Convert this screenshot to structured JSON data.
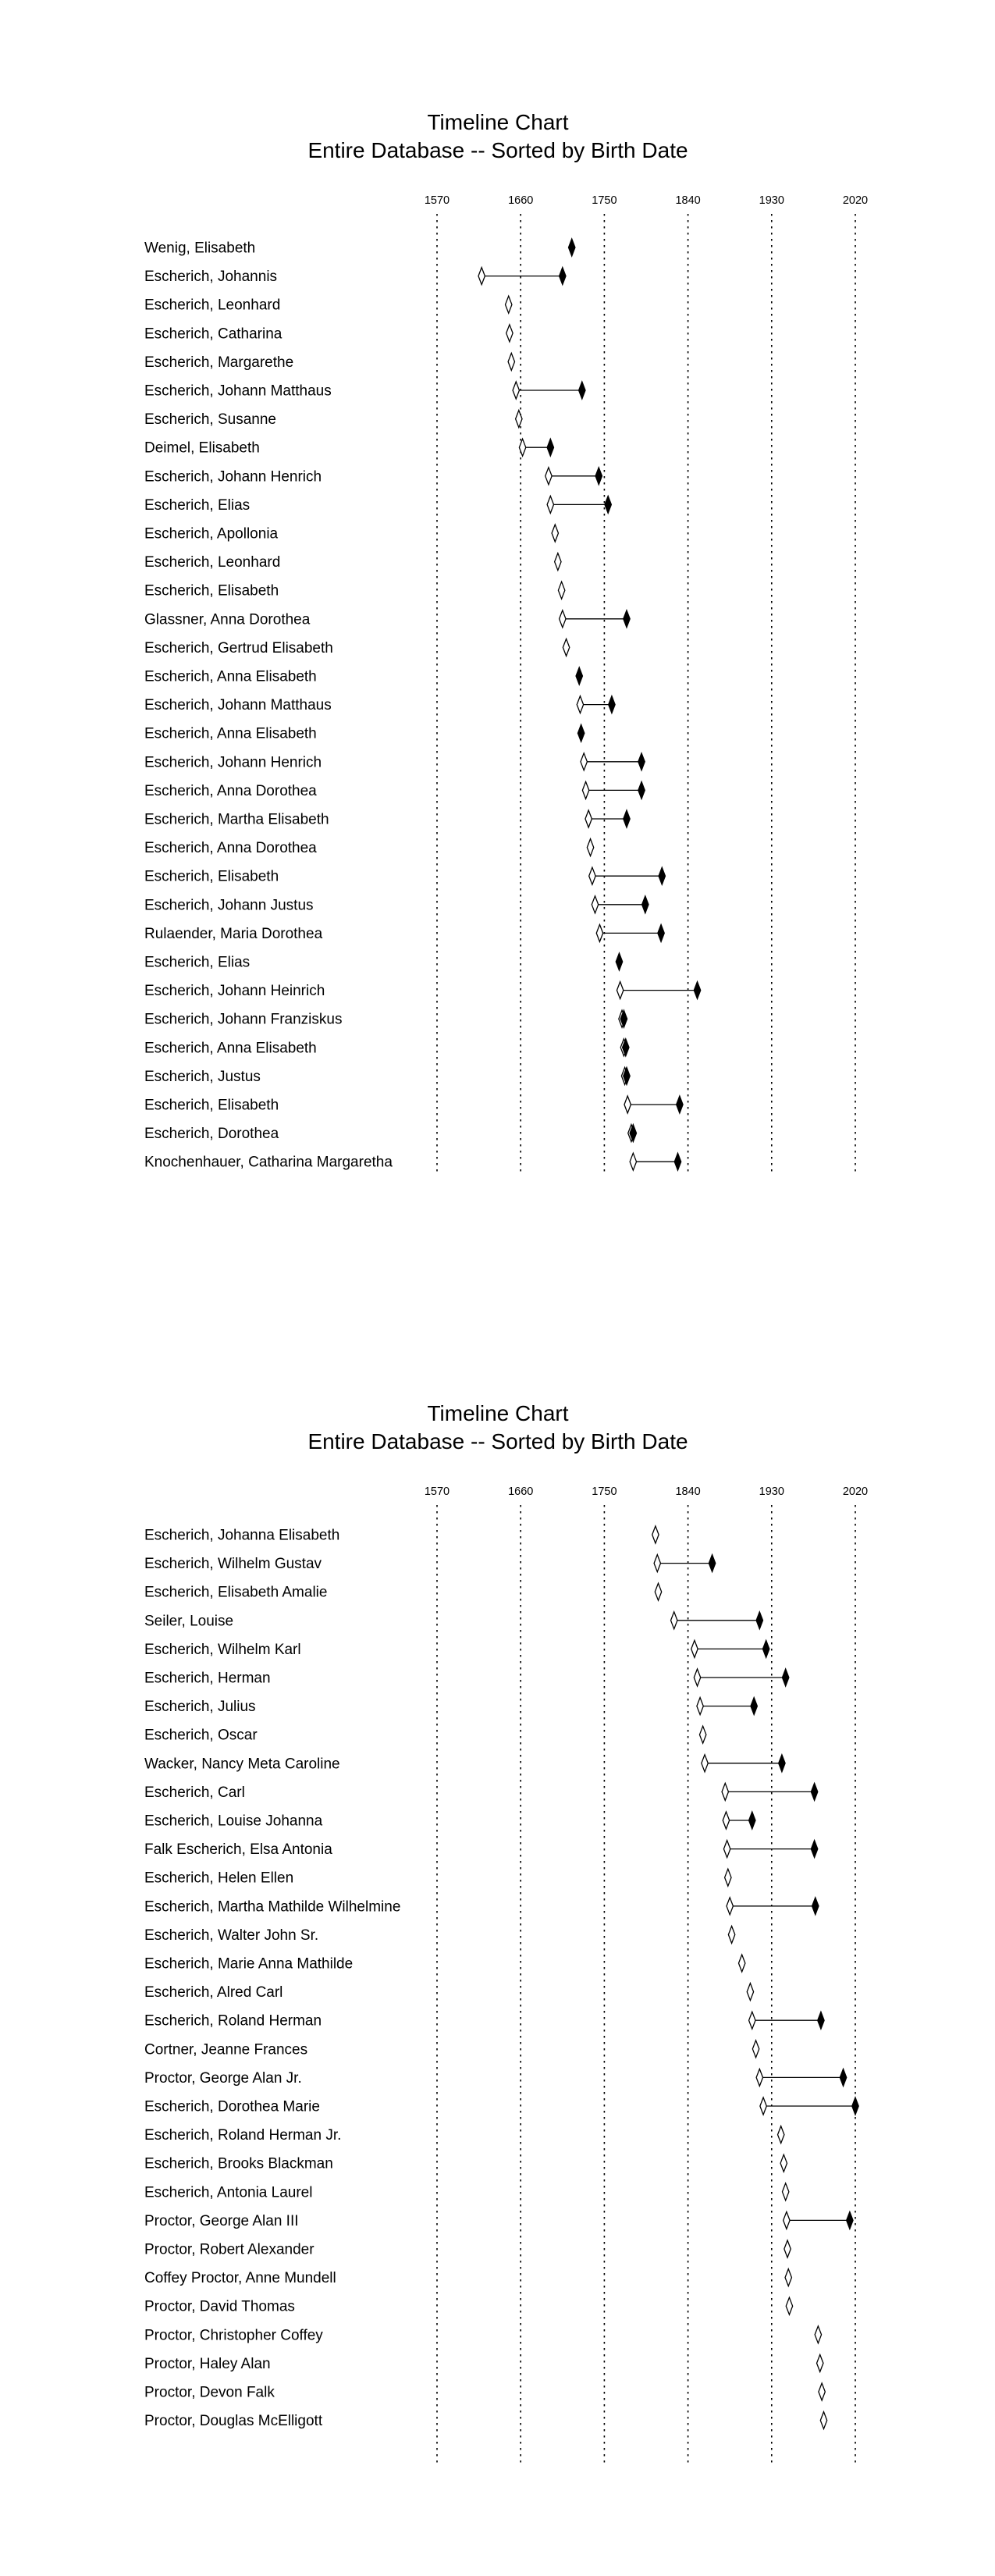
{
  "chart_data": [
    {
      "type": "timeline",
      "title": "Timeline Chart",
      "subtitle": "Entire Database -- Sorted by Birth Date",
      "ticks": [
        1570,
        1660,
        1750,
        1840,
        1930,
        2020
      ],
      "xlim": [
        1570,
        2020
      ],
      "legend": "none",
      "people": [
        {
          "name": "Wenig, Elisabeth",
          "death": 1715
        },
        {
          "name": "Escherich, Johannis",
          "birth": 1618,
          "death": 1705
        },
        {
          "name": "Escherich, Leonhard",
          "birth": 1647
        },
        {
          "name": "Escherich, Catharina",
          "birth": 1648
        },
        {
          "name": "Escherich, Margarethe",
          "birth": 1650
        },
        {
          "name": "Escherich, Johann Matthaus",
          "birth": 1655,
          "death": 1726
        },
        {
          "name": "Escherich, Susanne",
          "birth": 1658
        },
        {
          "name": "Deimel, Elisabeth",
          "birth": 1662,
          "death": 1692
        },
        {
          "name": "Escherich, Johann Henrich",
          "birth": 1690,
          "death": 1744
        },
        {
          "name": "Escherich, Elias",
          "birth": 1692,
          "death": 1754
        },
        {
          "name": "Escherich, Apollonia",
          "birth": 1697
        },
        {
          "name": "Escherich, Leonhard",
          "birth": 1700
        },
        {
          "name": "Escherich, Elisabeth",
          "birth": 1704
        },
        {
          "name": "Glassner, Anna Dorothea",
          "birth": 1705,
          "death": 1774
        },
        {
          "name": "Escherich, Gertrud Elisabeth",
          "birth": 1709
        },
        {
          "name": "Escherich, Anna Elisabeth",
          "death": 1723
        },
        {
          "name": "Escherich, Johann Matthaus",
          "birth": 1724,
          "death": 1758
        },
        {
          "name": "Escherich, Anna Elisabeth",
          "death": 1725
        },
        {
          "name": "Escherich, Johann Henrich",
          "birth": 1728,
          "death": 1790
        },
        {
          "name": "Escherich, Anna Dorothea",
          "birth": 1730,
          "death": 1790
        },
        {
          "name": "Escherich, Martha Elisabeth",
          "birth": 1733,
          "death": 1774
        },
        {
          "name": "Escherich, Anna Dorothea",
          "birth": 1735
        },
        {
          "name": "Escherich, Elisabeth",
          "birth": 1737,
          "death": 1812
        },
        {
          "name": "Escherich, Johann Justus",
          "birth": 1740,
          "death": 1794
        },
        {
          "name": "Rulaender, Maria Dorothea",
          "birth": 1745,
          "death": 1811
        },
        {
          "name": "Escherich, Elias",
          "death": 1766
        },
        {
          "name": "Escherich, Johann Heinrich",
          "birth": 1767,
          "death": 1850
        },
        {
          "name": "Escherich, Johann Franziskus",
          "birth": 1769,
          "death": 1771
        },
        {
          "name": "Escherich, Anna Elisabeth",
          "birth": 1771,
          "death": 1773
        },
        {
          "name": "Escherich, Justus",
          "birth": 1772,
          "death": 1774
        },
        {
          "name": "Escherich, Elisabeth",
          "birth": 1775,
          "death": 1831
        },
        {
          "name": "Escherich, Dorothea",
          "birth": 1779,
          "death": 1781
        },
        {
          "name": "Knochenhauer, Catharina Margaretha",
          "birth": 1781,
          "death": 1829
        }
      ]
    },
    {
      "type": "timeline",
      "title": "Timeline Chart",
      "subtitle": "Entire Database -- Sorted by Birth Date",
      "ticks": [
        1570,
        1660,
        1750,
        1840,
        1930,
        2020
      ],
      "xlim": [
        1570,
        2020
      ],
      "legend": "none",
      "people": [
        {
          "name": "Escherich, Johanna Elisabeth",
          "birth": 1805
        },
        {
          "name": "Escherich, Wilhelm Gustav",
          "birth": 1807,
          "death": 1866
        },
        {
          "name": "Escherich, Elisabeth Amalie",
          "birth": 1808
        },
        {
          "name": "Seiler, Louise",
          "birth": 1825,
          "death": 1917
        },
        {
          "name": "Escherich, Wilhelm Karl",
          "birth": 1847,
          "death": 1924
        },
        {
          "name": "Escherich, Herman",
          "birth": 1850,
          "death": 1945
        },
        {
          "name": "Escherich, Julius",
          "birth": 1853,
          "death": 1911
        },
        {
          "name": "Escherich, Oscar",
          "birth": 1856
        },
        {
          "name": "Wacker, Nancy Meta Caroline",
          "birth": 1858,
          "death": 1941
        },
        {
          "name": "Escherich, Carl",
          "birth": 1880,
          "death": 1976
        },
        {
          "name": "Escherich, Louise Johanna",
          "birth": 1881,
          "death": 1909
        },
        {
          "name": "Falk Escherich, Elsa Antonia",
          "birth": 1882,
          "death": 1976
        },
        {
          "name": "Escherich, Helen Ellen",
          "birth": 1883
        },
        {
          "name": "Escherich, Martha Mathilde Wilhelmine",
          "birth": 1885,
          "death": 1977
        },
        {
          "name": "Escherich, Walter John Sr.",
          "birth": 1887
        },
        {
          "name": "Escherich, Marie Anna Mathilde",
          "birth": 1898
        },
        {
          "name": "Escherich, Alred Carl",
          "birth": 1907
        },
        {
          "name": "Escherich, Roland Herman",
          "birth": 1909,
          "death": 1983
        },
        {
          "name": "Cortner, Jeanne Frances",
          "birth": 1913
        },
        {
          "name": "Proctor, George Alan Jr.",
          "birth": 1917,
          "death": 2007
        },
        {
          "name": "Escherich, Dorothea Marie",
          "birth": 1921,
          "death": 2020
        },
        {
          "name": "Escherich, Roland Herman Jr.",
          "birth": 1940
        },
        {
          "name": "Escherich, Brooks Blackman",
          "birth": 1943
        },
        {
          "name": "Escherich, Antonia Laurel",
          "birth": 1945
        },
        {
          "name": "Proctor, George Alan III",
          "birth": 1946,
          "death": 2014
        },
        {
          "name": "Proctor, Robert Alexander",
          "birth": 1947
        },
        {
          "name": "Coffey Proctor, Anne Mundell",
          "birth": 1948
        },
        {
          "name": "Proctor, David Thomas",
          "birth": 1949
        },
        {
          "name": "Proctor, Christopher Coffey",
          "birth": 1980
        },
        {
          "name": "Proctor, Haley Alan",
          "birth": 1982
        },
        {
          "name": "Proctor, Devon Falk",
          "birth": 1984
        },
        {
          "name": "Proctor, Douglas McElligott",
          "birth": 1986
        }
      ]
    }
  ]
}
